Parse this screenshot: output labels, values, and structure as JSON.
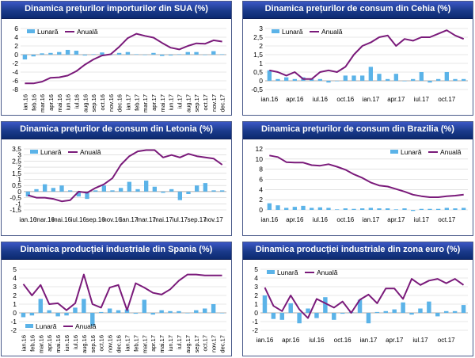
{
  "colors": {
    "monthly": "#5bb3e8",
    "annual": "#7a1a7a",
    "header": "#1a3a8a",
    "grid": "#d0d0d0"
  },
  "chart_data": [
    {
      "type": "bar",
      "title": "Dinamica prețurilor importurilor din SUA (%)",
      "legend": {
        "monthly": "Lunară",
        "annual": "Anuală",
        "placement": "top-left"
      },
      "ylim": [
        -8,
        6
      ],
      "yticks": [
        "-8",
        "-6",
        "-4",
        "-2",
        "0",
        "2",
        "4",
        "6"
      ],
      "category_labels": [
        "ian.16",
        "feb.16",
        "mar.16",
        "apr.16",
        "mai.16",
        "iun.16",
        "iul.16",
        "aug.16",
        "sep.16",
        "oct.16",
        "nov.16",
        "dec.16",
        "ian.17",
        "feb.17",
        "mar.17",
        "apr.17",
        "mai.17",
        "iun.17",
        "iul.17",
        "aug.17",
        "sep.17",
        "oct.17",
        "nov.17",
        "dec.17"
      ],
      "series": [
        {
          "name": "Lunară",
          "kind": "bar",
          "values": [
            -1.1,
            -0.4,
            0.3,
            0.4,
            0.6,
            1.1,
            0.9,
            -0.2,
            0.1,
            0.5,
            -0.1,
            0.4,
            0.6,
            0.1,
            -0.1,
            0.4,
            -0.3,
            -0.2,
            0.1,
            0.6,
            0.6,
            0.0,
            0.8,
            0.1
          ]
        },
        {
          "name": "Anuală",
          "kind": "line",
          "values": [
            -6.6,
            -6.6,
            -6.2,
            -5.3,
            -5.2,
            -4.8,
            -3.8,
            -2.3,
            -1.1,
            -0.2,
            0.1,
            1.8,
            3.8,
            4.8,
            4.3,
            3.9,
            2.7,
            1.6,
            1.2,
            2.0,
            2.6,
            2.5,
            3.3,
            3.0
          ]
        }
      ]
    },
    {
      "type": "bar",
      "title": "Dinamica prețurilor de consum din Cehia (%)",
      "legend": {
        "monthly": "Lunară",
        "annual": "Anuală",
        "placement": "top-left"
      },
      "ylim": [
        -0.5,
        3
      ],
      "yticks": [
        "-0,5",
        "0",
        "0,5",
        "1",
        "1,5",
        "2",
        "2,5",
        "3"
      ],
      "category_labels": [
        "ian.16",
        "",
        "",
        "apr.16",
        "",
        "",
        "iul.16",
        "",
        "",
        "oct.16",
        "",
        "",
        "ian.17",
        "",
        "",
        "apr.17",
        "",
        "",
        "iul.17",
        "",
        "",
        "oct.17",
        "",
        ""
      ],
      "series": [
        {
          "name": "Lunară",
          "kind": "bar",
          "values": [
            0.6,
            0.1,
            0.2,
            0.1,
            0.2,
            0.1,
            0.1,
            -0.1,
            0.0,
            0.3,
            0.3,
            0.3,
            0.8,
            0.4,
            0.1,
            0.4,
            0.0,
            0.1,
            0.5,
            -0.1,
            0.1,
            0.5,
            0.1,
            0.1
          ]
        },
        {
          "name": "Anuală",
          "kind": "line",
          "values": [
            0.6,
            0.5,
            0.3,
            0.5,
            0.1,
            0.1,
            0.5,
            0.6,
            0.5,
            0.8,
            1.5,
            2.0,
            2.2,
            2.5,
            2.6,
            2.0,
            2.4,
            2.3,
            2.5,
            2.5,
            2.7,
            2.9,
            2.6,
            2.4
          ]
        }
      ]
    },
    {
      "type": "bar",
      "title": "Dinamica prețurilor de consum din Letonia (%)",
      "legend": {
        "monthly": "Lunară",
        "annual": "Anuală",
        "placement": "top-left"
      },
      "ylim": [
        -1.5,
        3.5
      ],
      "yticks": [
        "-1,5",
        "-1",
        "-0,5",
        "0",
        "0,5",
        "1",
        "1,5",
        "2",
        "2,5",
        "3",
        "3,5"
      ],
      "category_labels": [
        "ian.16",
        "",
        "mar.16",
        "",
        "mai.16",
        "",
        "iul.16",
        "",
        "sep.16",
        "",
        "nov.16",
        "",
        "ian.17",
        "",
        "mar.17",
        "",
        "mai.17",
        "",
        "iul.17",
        "",
        "sep.17",
        "",
        "nov.17",
        ""
      ],
      "series": [
        {
          "name": "Lunară",
          "kind": "bar",
          "values": [
            -0.4,
            0.2,
            0.6,
            0.3,
            0.5,
            0.1,
            -0.4,
            -0.6,
            0.1,
            0.5,
            0.1,
            0.3,
            0.8,
            0.2,
            0.9,
            0.4,
            -0.1,
            0.2,
            -0.7,
            -0.2,
            0.5,
            0.7,
            0.1,
            0.1
          ]
        },
        {
          "name": "Anuală",
          "kind": "line",
          "values": [
            -0.3,
            -0.5,
            -0.5,
            -0.6,
            -0.8,
            -0.7,
            0.0,
            -0.1,
            0.3,
            0.6,
            1.1,
            2.2,
            2.9,
            3.3,
            3.4,
            3.4,
            2.8,
            3.0,
            2.8,
            3.1,
            2.9,
            2.8,
            2.7,
            2.2
          ]
        }
      ]
    },
    {
      "type": "bar",
      "title": "Dinamica prețurilor de consum din Brazilia (%)",
      "legend": {
        "monthly": "Lunară",
        "annual": "Anuală",
        "placement": "top-right"
      },
      "ylim": [
        0,
        12
      ],
      "yticks": [
        "0",
        "2",
        "4",
        "6",
        "8",
        "10",
        "12"
      ],
      "category_labels": [
        "ian.16",
        "",
        "",
        "apr.16",
        "",
        "",
        "iul.16",
        "",
        "",
        "oct.16",
        "",
        "",
        "ian.17",
        "",
        "",
        "apr.17",
        "",
        "",
        "iul.17",
        "",
        "",
        "oct.17",
        "",
        ""
      ],
      "series": [
        {
          "name": "Lunară",
          "kind": "bar",
          "values": [
            1.3,
            0.9,
            0.4,
            0.6,
            0.8,
            0.4,
            0.5,
            0.4,
            0.1,
            0.3,
            0.2,
            0.3,
            0.4,
            0.3,
            0.3,
            0.1,
            0.3,
            -0.2,
            0.2,
            0.2,
            0.2,
            0.4,
            0.3,
            0.4
          ]
        },
        {
          "name": "Anuală",
          "kind": "line",
          "values": [
            10.7,
            10.4,
            9.4,
            9.3,
            9.3,
            8.8,
            8.7,
            9.0,
            8.5,
            7.9,
            7.0,
            6.3,
            5.4,
            4.8,
            4.6,
            4.1,
            3.6,
            3.0,
            2.7,
            2.5,
            2.5,
            2.7,
            2.8,
            3.0
          ]
        }
      ]
    },
    {
      "type": "bar",
      "title": "Dinamica producției industriale din Spania (%)",
      "legend": {
        "monthly": "Lunară",
        "annual": "Anuală",
        "placement": "bottom-left"
      },
      "ylim": [
        -2,
        5
      ],
      "yticks": [
        "-2",
        "-1",
        "0",
        "1",
        "2",
        "3",
        "4",
        "5"
      ],
      "category_labels": [
        "ian.16",
        "feb.16",
        "mar.16",
        "apr.16",
        "mai.16",
        "iun.16",
        "iul.16",
        "aug.16",
        "sep.16",
        "oct.16",
        "nov.16",
        "dec.16",
        "ian.17",
        "feb.17",
        "mar.17",
        "apr.17",
        "mai.17",
        "iun.17",
        "iul.17",
        "aug.17",
        "sep.17",
        "oct.17",
        "nov.17",
        "dec.17"
      ],
      "series": [
        {
          "name": "Lunară",
          "kind": "bar",
          "values": [
            -0.5,
            -0.3,
            1.6,
            0.3,
            -0.4,
            -0.3,
            0.6,
            1.6,
            -1.5,
            0.1,
            0.5,
            0.3,
            0.4,
            -0.1,
            1.5,
            -0.2,
            0.3,
            0.2,
            0.2,
            0.0,
            0.3,
            0.5,
            1.0,
            0.0
          ]
        },
        {
          "name": "Anuală",
          "kind": "line",
          "values": [
            3.3,
            2.0,
            3.2,
            1.0,
            1.1,
            0.3,
            1.1,
            4.4,
            1.0,
            0.6,
            2.9,
            3.2,
            0.3,
            3.4,
            2.9,
            2.3,
            2.1,
            2.7,
            3.7,
            4.4,
            4.4,
            4.3,
            4.3,
            4.3
          ]
        }
      ]
    },
    {
      "type": "bar",
      "title": "Dinamica producției industriale din zona euro (%)",
      "legend": {
        "monthly": "Lunară",
        "annual": "Anuală",
        "placement": "top-left"
      },
      "ylim": [
        -2,
        5
      ],
      "yticks": [
        "-2",
        "-1",
        "0",
        "1",
        "2",
        "3",
        "4",
        "5"
      ],
      "category_labels": [
        "ian.16",
        "",
        "",
        "apr.16",
        "",
        "",
        "iul.16",
        "",
        "",
        "oct.16",
        "",
        "",
        "ian.17",
        "",
        "",
        "apr.17",
        "",
        "",
        "iul.17",
        "",
        "",
        "oct.17",
        "",
        ""
      ],
      "series": [
        {
          "name": "Lunară",
          "kind": "bar",
          "values": [
            2.0,
            -0.7,
            -0.8,
            1.1,
            -1.2,
            0.5,
            -0.6,
            1.8,
            -0.8,
            -0.1,
            0.1,
            1.5,
            -1.2,
            0.1,
            0.2,
            0.4,
            1.2,
            -0.2,
            0.5,
            1.3,
            -0.4,
            0.2,
            0.2,
            0.9
          ]
        },
        {
          "name": "Anuală",
          "kind": "line",
          "values": [
            2.9,
            0.8,
            0.2,
            2.0,
            0.4,
            -0.6,
            1.6,
            1.1,
            0.6,
            1.3,
            0.0,
            1.5,
            2.1,
            1.1,
            2.8,
            2.8,
            1.6,
            3.9,
            3.2,
            3.7,
            3.9,
            3.4,
            3.9,
            3.2
          ]
        }
      ]
    }
  ]
}
